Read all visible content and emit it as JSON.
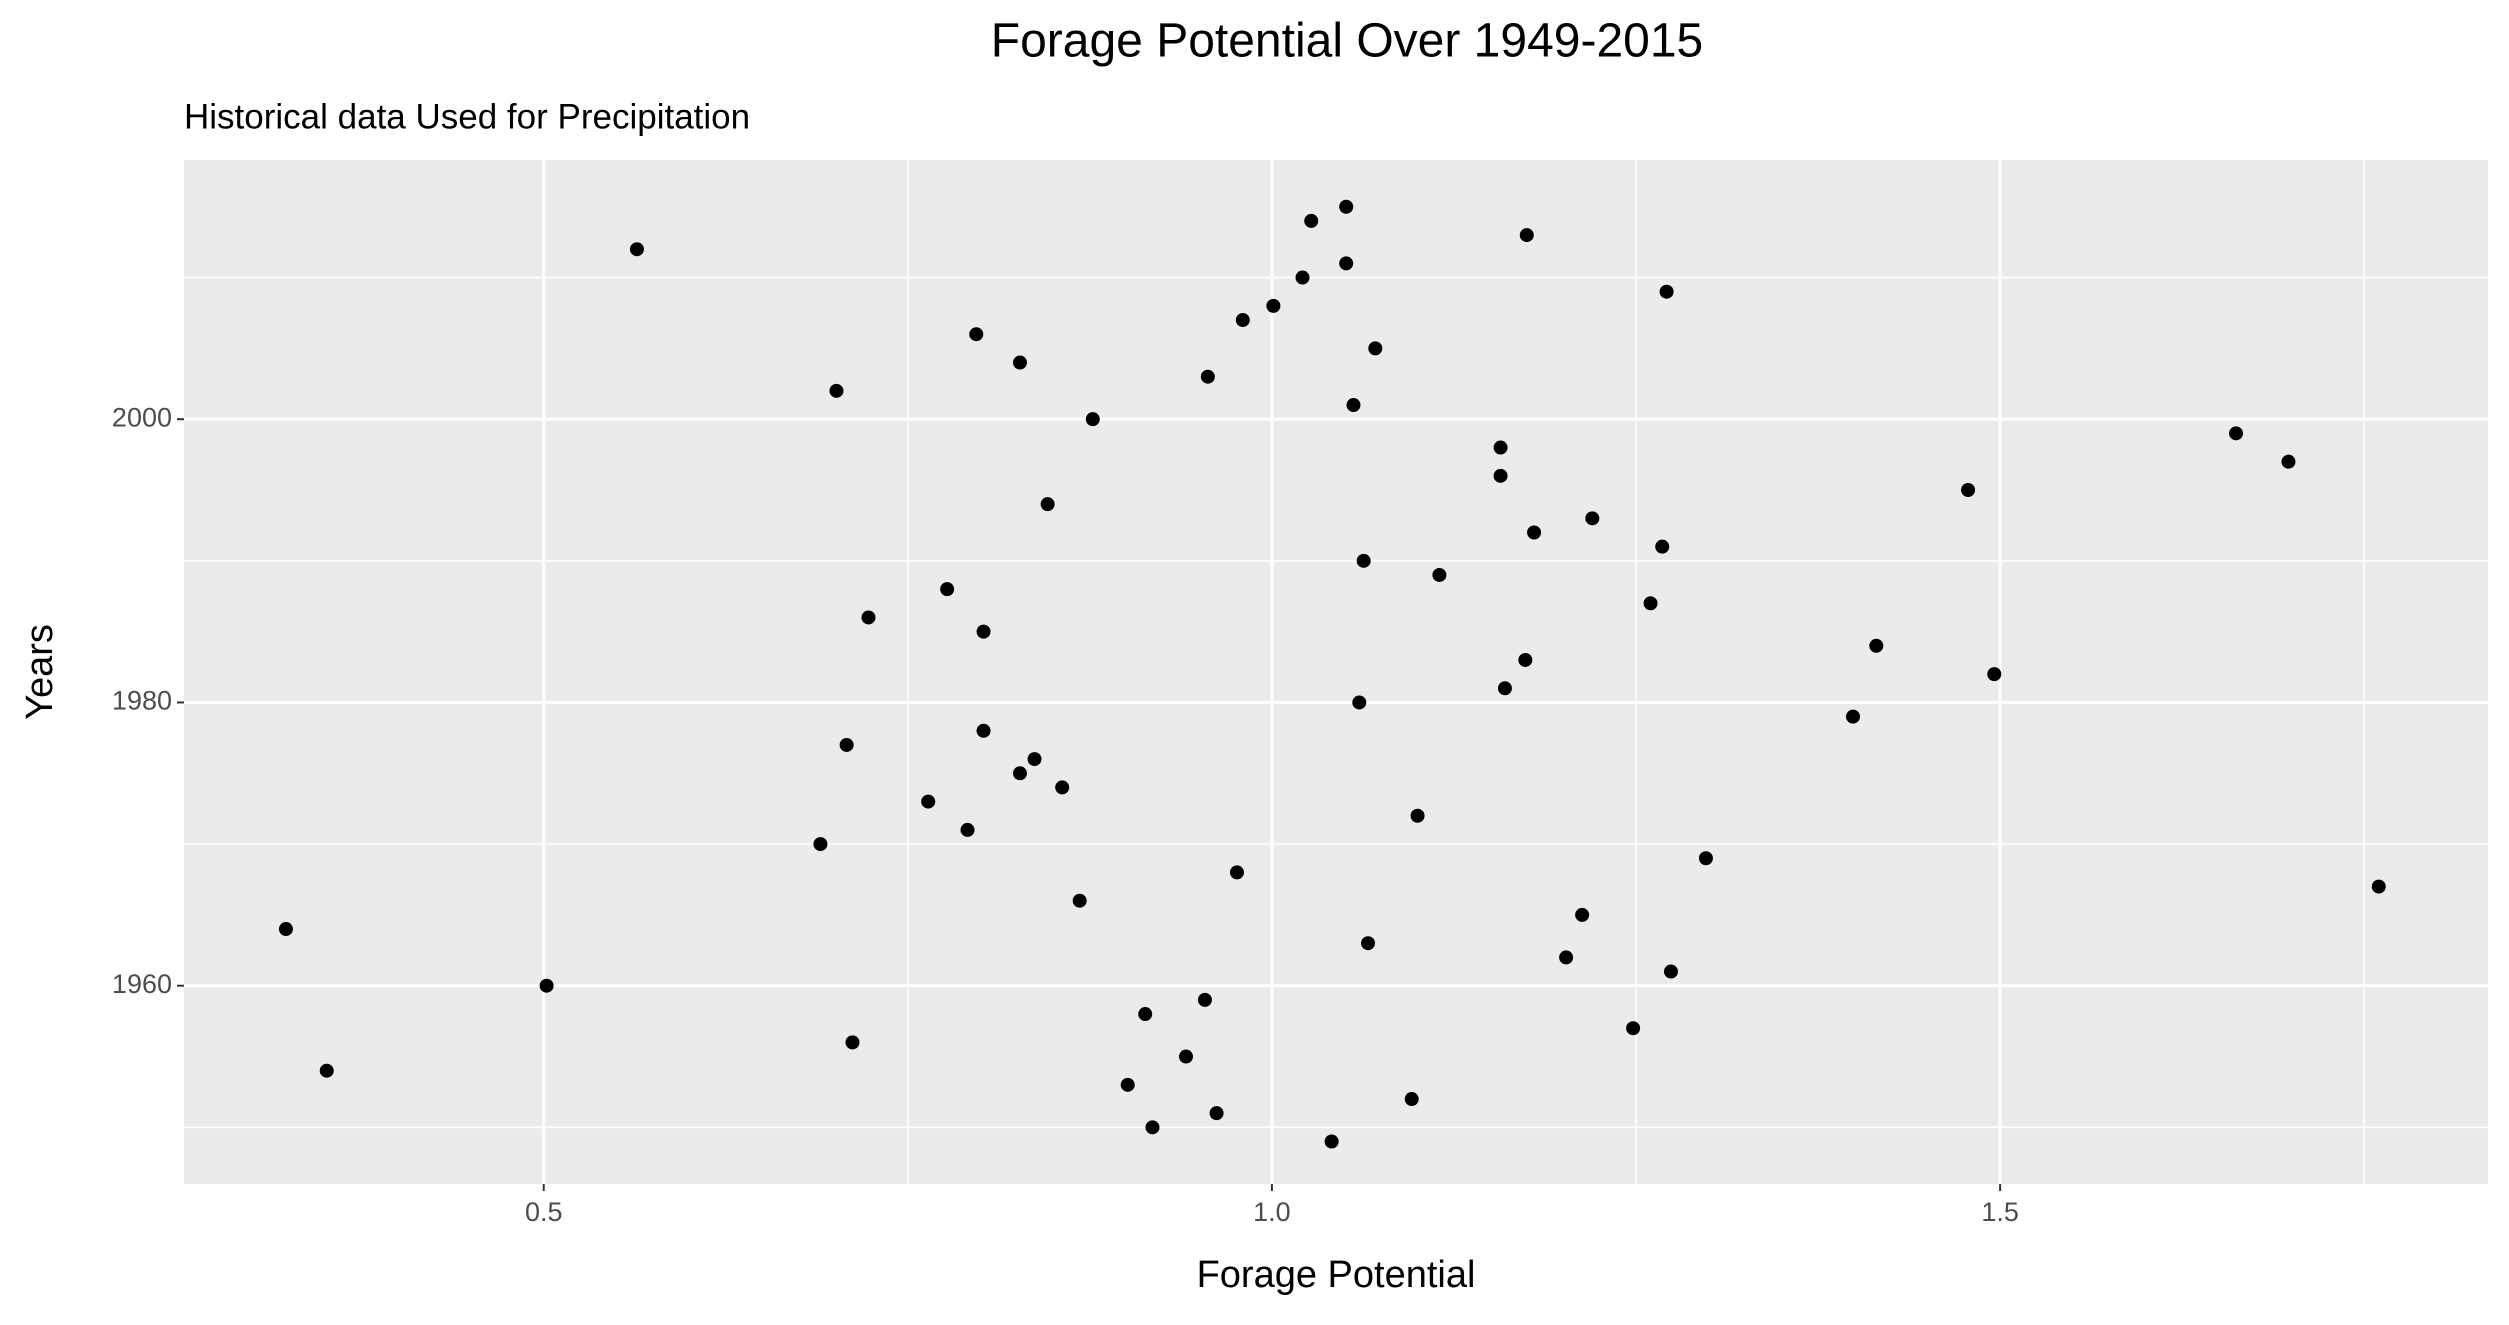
{
  "chart_data": {
    "type": "scatter",
    "title": "Forage Potential Over 1949-2015",
    "subtitle": "Historical data Used for Precipitation",
    "x_label": "Forage Potential",
    "y_label": "Years",
    "x": [
      1.041,
      0.918,
      0.962,
      1.096,
      0.901,
      0.351,
      0.941,
      0.712,
      1.248,
      0.913,
      0.954,
      0.502,
      1.274,
      1.202,
      1.066,
      0.323,
      1.213,
      0.868,
      1.76,
      0.976,
      1.298,
      0.69,
      0.791,
      1.1,
      0.764,
      0.856,
      0.827,
      0.837,
      0.708,
      0.802,
      1.399,
      1.06,
      1.16,
      1.496,
      1.174,
      1.415,
      0.802,
      0.723,
      1.26,
      0.777,
      1.115,
      1.063,
      1.268,
      1.18,
      1.22,
      0.846,
      1.478,
      1.157,
      1.698,
      1.157,
      1.662,
      0.877,
      1.056,
      0.701,
      0.956,
      0.827,
      1.071,
      0.797,
      0.98,
      1.001,
      1.271,
      1.021,
      1.051,
      0.564,
      1.175,
      1.027,
      1.051
    ],
    "values": [
      1949,
      1950,
      1951,
      1952,
      1953,
      1954,
      1955,
      1956,
      1957,
      1958,
      1959,
      1960,
      1961,
      1962,
      1963,
      1964,
      1965,
      1966,
      1967,
      1968,
      1969,
      1970,
      1971,
      1972,
      1973,
      1974,
      1975,
      1976,
      1977,
      1978,
      1979,
      1980,
      1981,
      1982,
      1983,
      1984,
      1985,
      1986,
      1987,
      1988,
      1989,
      1990,
      1991,
      1992,
      1993,
      1994,
      1995,
      1996,
      1997,
      1998,
      1999,
      2000,
      2001,
      2002,
      2003,
      2004,
      2005,
      2006,
      2007,
      2008,
      2009,
      2010,
      2011,
      2012,
      2013,
      2014,
      2015
    ],
    "color": "#000000",
    "xlim": [
      0.253,
      1.835
    ],
    "ylim": [
      1946.0,
      2018.3
    ],
    "xticks": [
      {
        "value": 0.5,
        "label": "0.5"
      },
      {
        "value": 1.0,
        "label": "1.0"
      },
      {
        "value": 1.5,
        "label": "1.5"
      }
    ],
    "x_minor_ticks": [
      0.75,
      1.25,
      1.75
    ],
    "yticks": [
      1960,
      1980,
      2000
    ],
    "y_minor_ticks": [
      1950,
      1970,
      1990,
      2010
    ],
    "grid": true
  }
}
